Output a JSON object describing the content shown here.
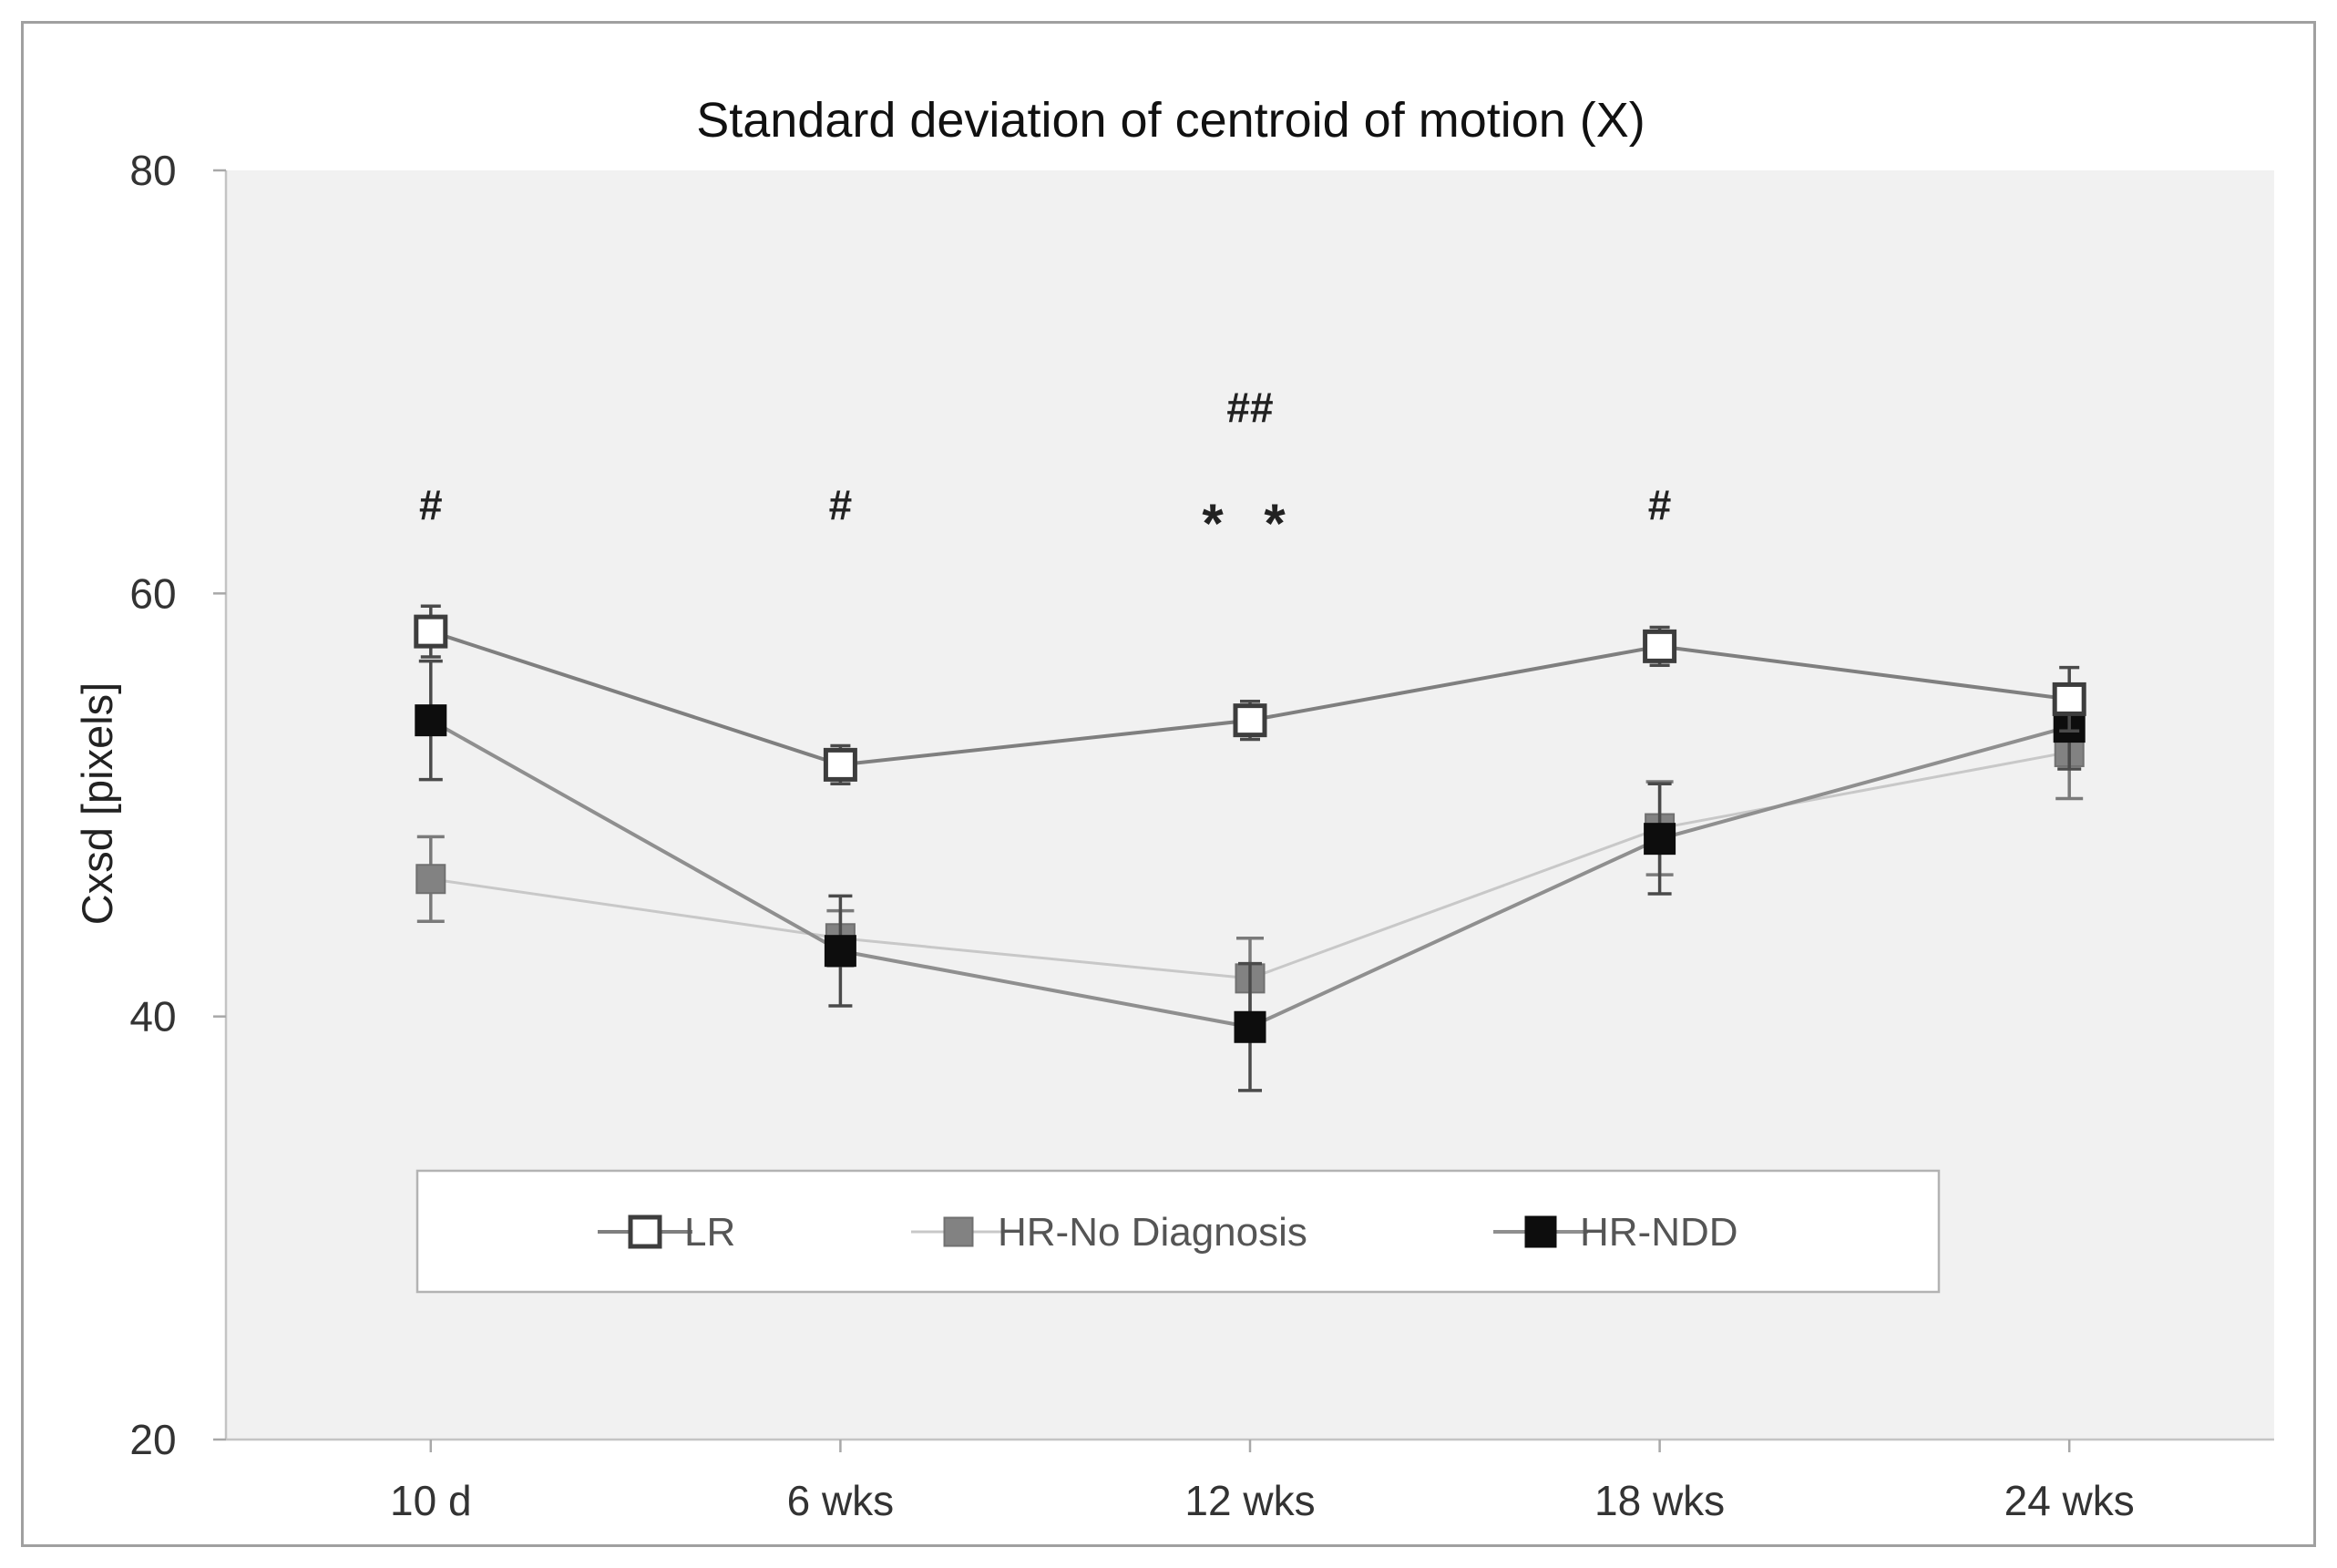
{
  "figure": {
    "title": "Standard deviation of centroid of motion (X)"
  },
  "style": {
    "figure_border": "#a0a0a0",
    "plot_background": "#f1f1f1",
    "axis_line": "#c4c4c4",
    "tick_mark": "#a8a8a8",
    "title_color": "#111111",
    "tick_label_color": "#333333",
    "axis_title_color": "#222222",
    "legend_text_color": "#555555",
    "legend_border": "#b3b3b3",
    "annotation_color": "#222222",
    "error_bar_dark": "#4a4a4a",
    "error_bar_gray": "#7a7a7a"
  },
  "chart_data": {
    "type": "line",
    "title": "Standard deviation of centroid of motion (X)",
    "xlabel": "",
    "ylabel": "Cxsd [pixels]",
    "categories": [
      "10 d",
      "6 wks",
      "12 wks",
      "18 wks",
      "24 wks"
    ],
    "ylim": [
      20,
      80
    ],
    "y_ticks": [
      20,
      40,
      60,
      80
    ],
    "grid": false,
    "legend_position": "bottom-center-box",
    "series": [
      {
        "name": "LR",
        "values": [
          58.2,
          51.9,
          54.0,
          57.5,
          55.0
        ],
        "errors": [
          1.2,
          0.9,
          0.9,
          0.9,
          1.5
        ],
        "marker": "open-square",
        "marker_fill": "#ffffff",
        "marker_stroke": "#3d3d3d",
        "line_color": "#7f7f7f",
        "error_color": "#4a4a4a"
      },
      {
        "name": "HR-No Diagnosis",
        "values": [
          46.5,
          43.7,
          41.8,
          48.9,
          52.5
        ],
        "errors": [
          2.0,
          1.3,
          1.9,
          2.2,
          2.2
        ],
        "marker": "filled-square",
        "marker_fill": "#828282",
        "marker_stroke": "#707070",
        "line_color": "#c8c8c8",
        "error_color": "#7a7a7a"
      },
      {
        "name": "HR-NDD",
        "values": [
          54.0,
          43.1,
          39.5,
          48.4,
          53.7
        ],
        "errors": [
          2.8,
          2.6,
          3.0,
          2.6,
          2.0
        ],
        "marker": "filled-square",
        "marker_fill": "#0d0d0d",
        "marker_stroke": "#0d0d0d",
        "line_color": "#8f8f8f",
        "error_color": "#4a4a4a"
      }
    ],
    "annotations": [
      {
        "text": "#",
        "category_index": 0,
        "y_value": 64.2
      },
      {
        "text": "#",
        "category_index": 1,
        "y_value": 64.2
      },
      {
        "text": "##",
        "category_index": 2,
        "y_value": 68.8
      },
      {
        "text": "* *",
        "category_index": 2,
        "y_value": 63.8
      },
      {
        "text": "#",
        "category_index": 3,
        "y_value": 64.2
      }
    ]
  }
}
